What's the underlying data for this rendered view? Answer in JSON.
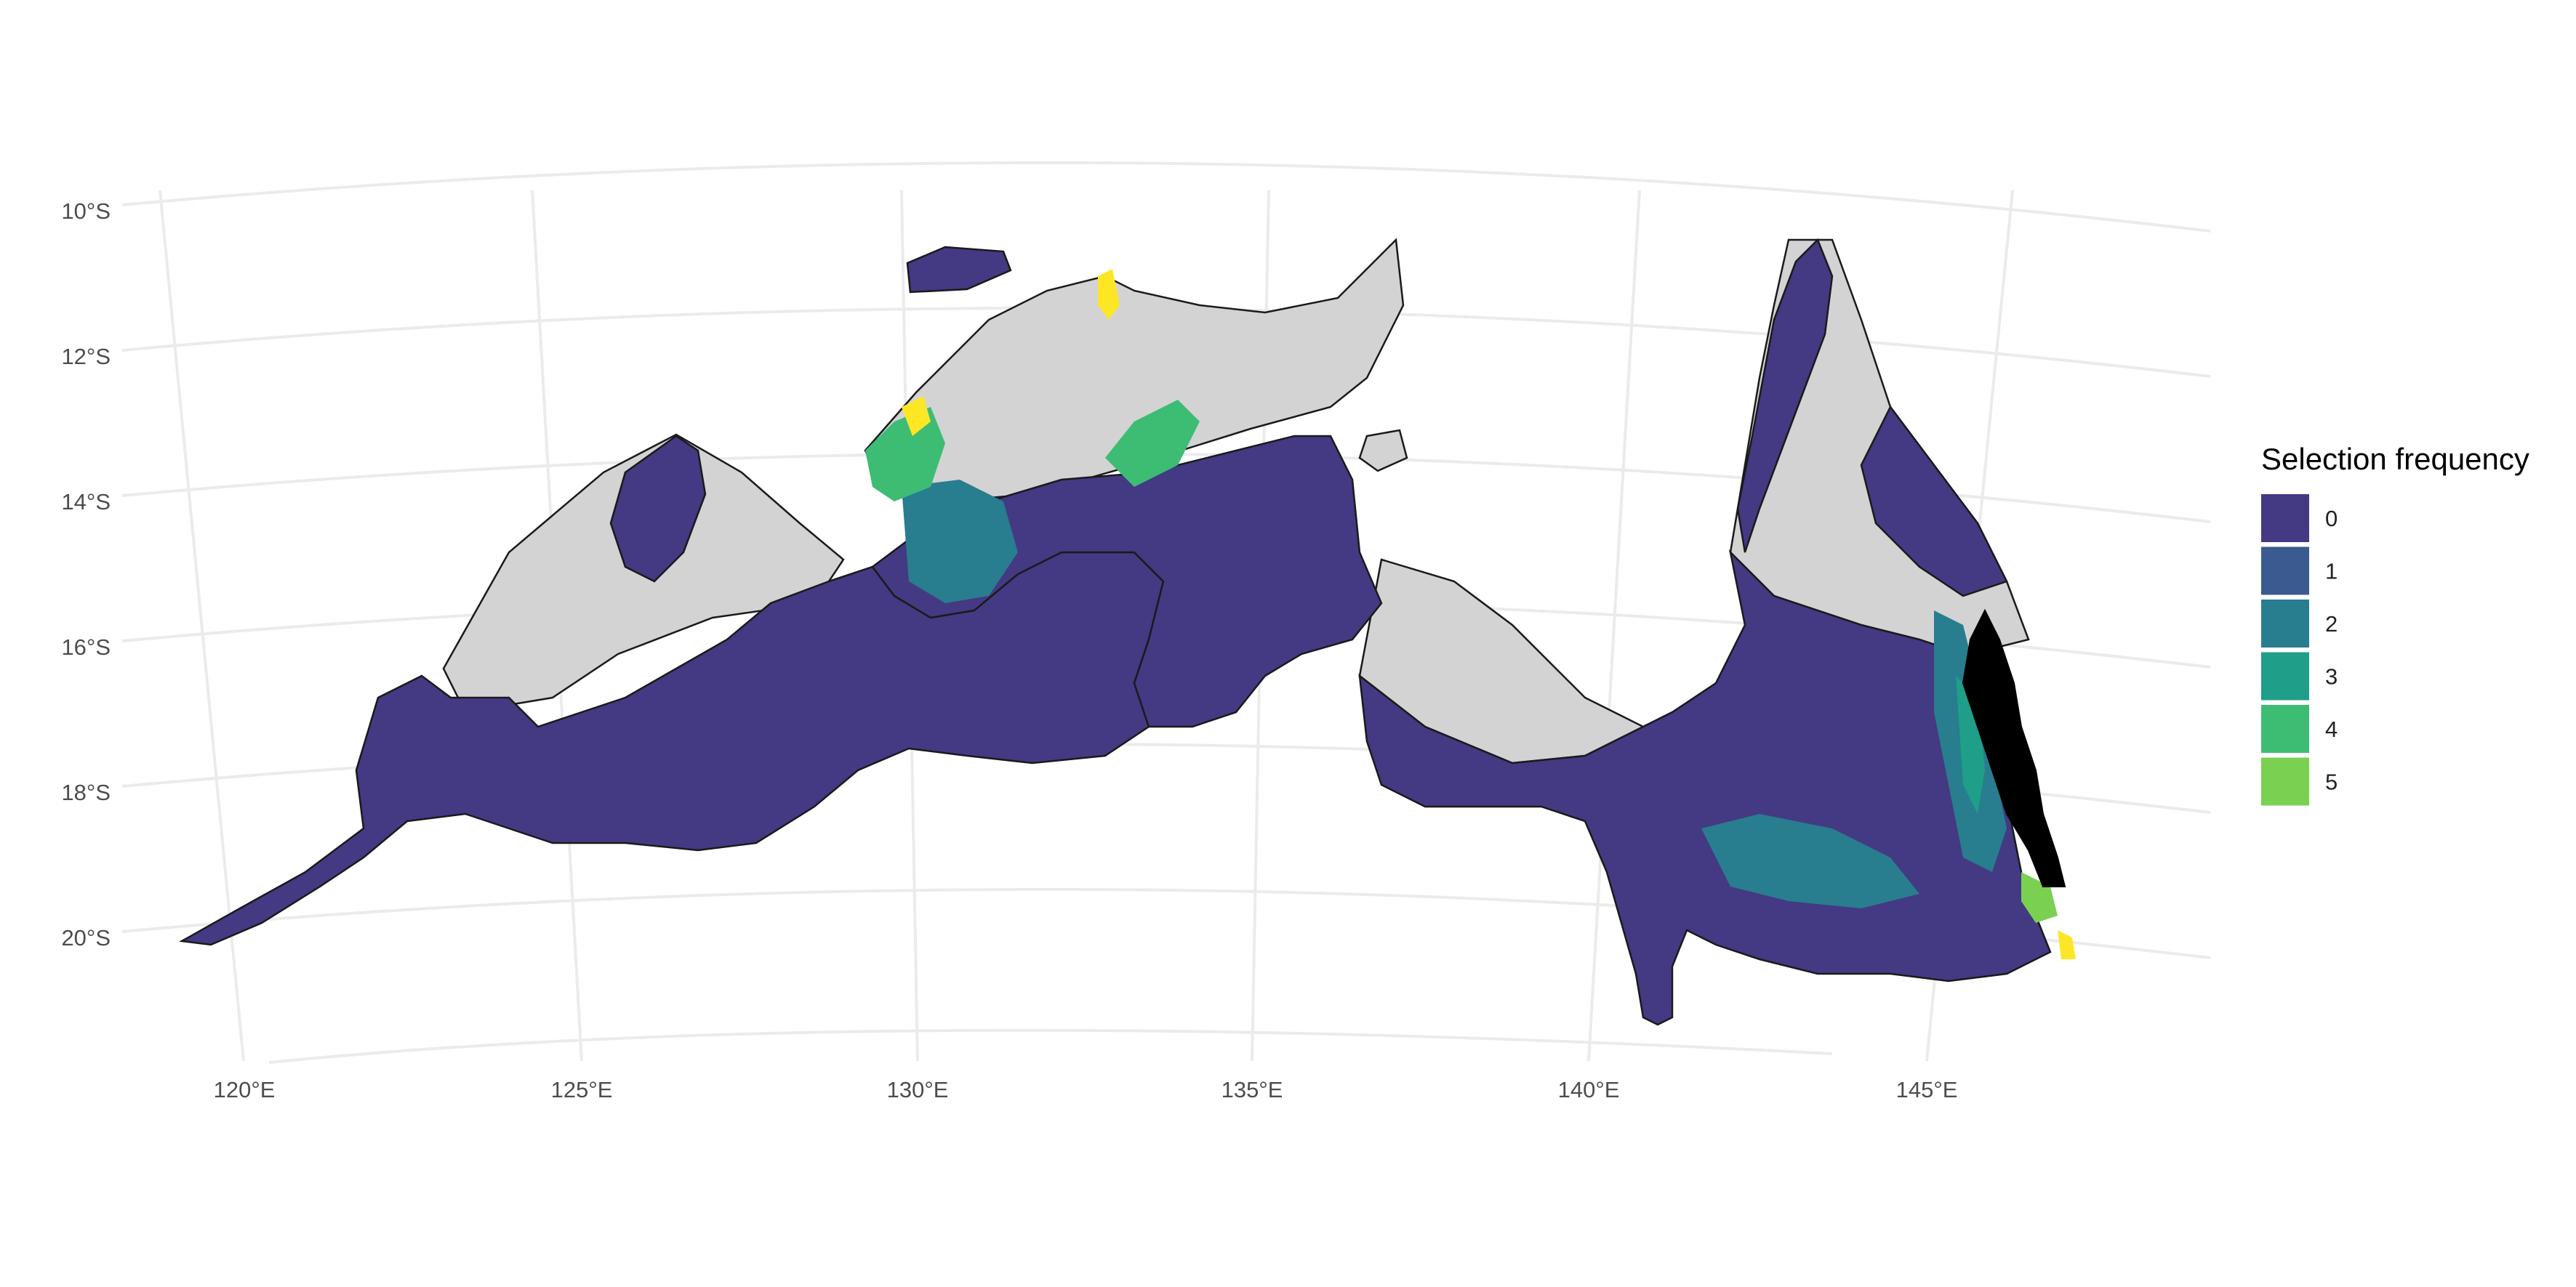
{
  "map": {
    "lat_labels": [
      "10°S",
      "12°S",
      "14°S",
      "16°S",
      "18°S",
      "20°S"
    ],
    "lon_labels": [
      "120°E",
      "125°E",
      "130°E",
      "135°E",
      "140°E",
      "145°E"
    ],
    "colors": {
      "background": "#ffffff",
      "graticule": "#ebebeb",
      "land": "#d3d3d3",
      "coast": "#1a1a1a",
      "excluded": "#000000"
    }
  },
  "legend": {
    "title": "Selection frequency",
    "items": [
      {
        "label": "0",
        "color": "#443983"
      },
      {
        "label": "1",
        "color": "#3b5a8f"
      },
      {
        "label": "2",
        "color": "#287d8e"
      },
      {
        "label": "3",
        "color": "#1f9e89"
      },
      {
        "label": "4",
        "color": "#3dbc74"
      },
      {
        "label": "5",
        "color": "#7ad151"
      }
    ],
    "highlight_color": "#fde725"
  }
}
